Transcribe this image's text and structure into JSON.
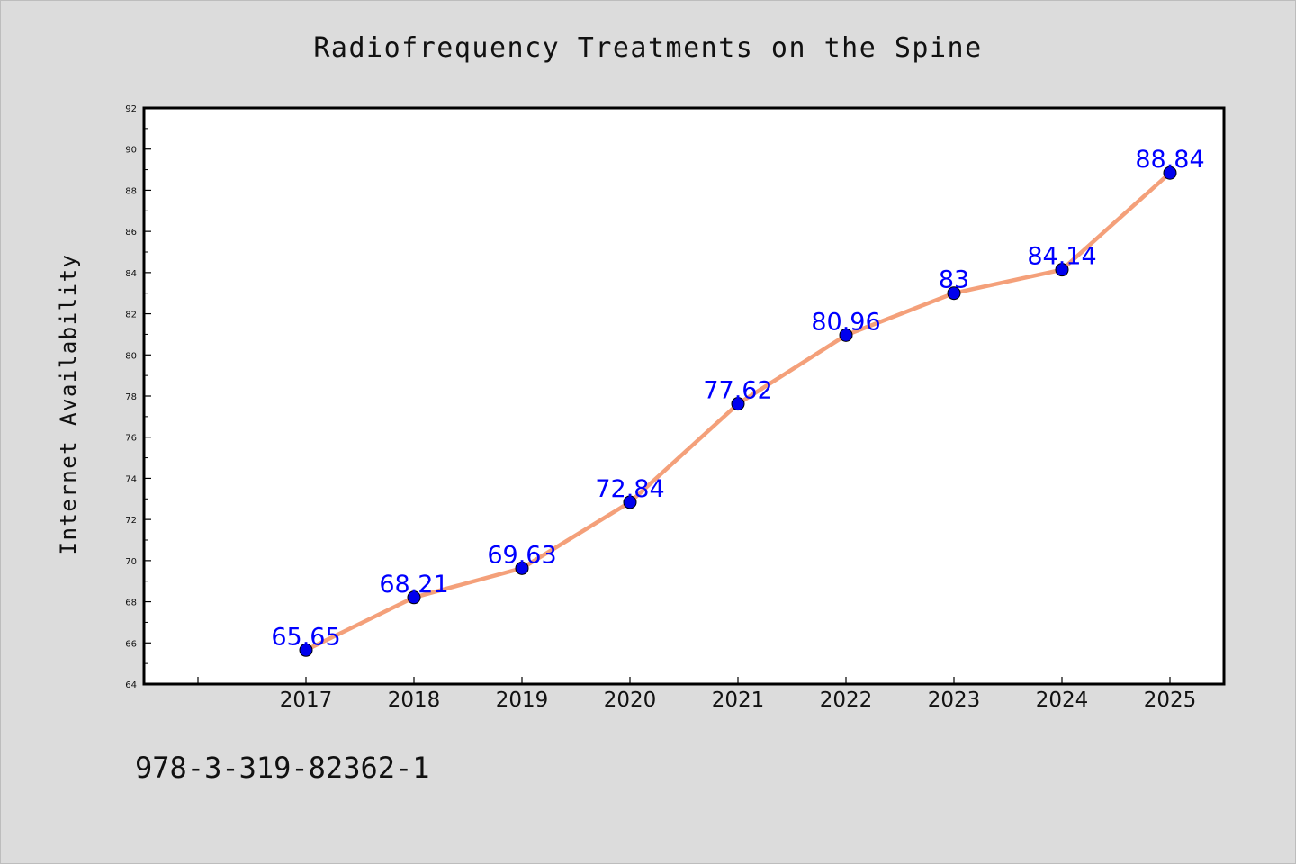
{
  "chart_data": {
    "type": "line",
    "title": "Radiofrequency Treatments on the Spine",
    "xlabel": "",
    "ylabel": "Internet Availability",
    "categories": [
      "2017",
      "2018",
      "2019",
      "2020",
      "2021",
      "2022",
      "2023",
      "2024",
      "2025"
    ],
    "values": [
      65.65,
      68.21,
      69.63,
      72.84,
      77.62,
      80.96,
      83,
      84.14,
      88.84
    ],
    "data_labels": [
      "65.65",
      "68.21",
      "69.63",
      "72.84",
      "77.62",
      "80.96",
      "83",
      "84.14",
      "88.84"
    ],
    "y_ticks": [
      "64",
      "66",
      "68",
      "70",
      "72",
      "74",
      "76",
      "78",
      "80",
      "82",
      "84",
      "86",
      "88",
      "90",
      "92"
    ],
    "ylim": [
      64,
      92
    ],
    "grid": false,
    "legend": "none",
    "colors": {
      "line": "#f4a07a",
      "marker": "#0000ee",
      "data_label": "#0000ff",
      "plot_background": "#ffffff",
      "page_background": "#dcdcdc"
    }
  },
  "footer_text": "978-3-319-82362-1"
}
